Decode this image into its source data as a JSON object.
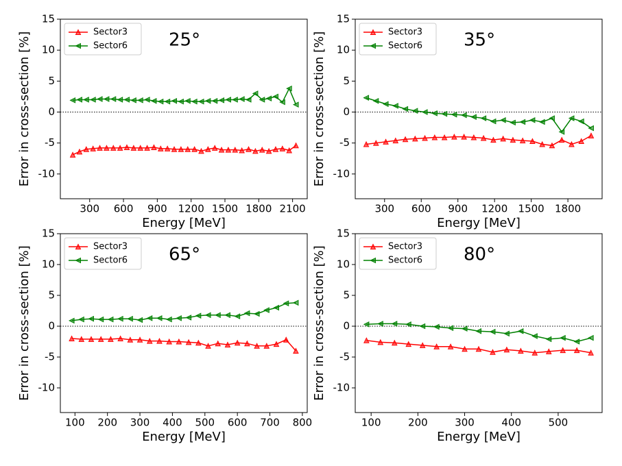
{
  "chart_data": [
    {
      "type": "line",
      "annotation": "25°",
      "xlabel": "Energy [MeV]",
      "ylabel": "Error in cross-section [%]",
      "x": [
        150,
        210,
        270,
        330,
        390,
        450,
        510,
        570,
        630,
        690,
        750,
        810,
        870,
        930,
        990,
        1050,
        1110,
        1170,
        1230,
        1290,
        1350,
        1410,
        1470,
        1530,
        1590,
        1650,
        1710,
        1770,
        1830,
        1890,
        1950,
        2010,
        2070,
        2130
      ],
      "series": [
        {
          "name": "Sector3",
          "color": "#ff0000",
          "marker": "triangle-up",
          "values": [
            -6.9,
            -6.4,
            -6.0,
            -5.9,
            -5.8,
            -5.8,
            -5.8,
            -5.8,
            -5.7,
            -5.8,
            -5.8,
            -5.8,
            -5.7,
            -5.9,
            -5.9,
            -6.0,
            -6.0,
            -6.0,
            -6.0,
            -6.3,
            -6.0,
            -5.8,
            -6.1,
            -6.1,
            -6.1,
            -6.2,
            -6.0,
            -6.3,
            -6.1,
            -6.3,
            -6.0,
            -5.9,
            -6.2,
            -5.4
          ]
        },
        {
          "name": "Sector6",
          "color": "#008000",
          "marker": "triangle-left",
          "values": [
            1.9,
            2.0,
            2.0,
            2.0,
            2.1,
            2.1,
            2.1,
            2.0,
            2.0,
            1.9,
            1.9,
            2.0,
            1.8,
            1.7,
            1.7,
            1.8,
            1.7,
            1.8,
            1.7,
            1.7,
            1.8,
            1.8,
            1.9,
            2.0,
            2.0,
            2.1,
            2.0,
            3.0,
            2.0,
            2.2,
            2.5,
            1.6,
            3.8,
            1.2
          ]
        }
      ],
      "xlim": [
        40,
        2230
      ],
      "xticks": [
        300,
        600,
        900,
        1200,
        1500,
        1800,
        2100
      ],
      "ylim": [
        -14,
        15
      ],
      "yticks": [
        -10,
        -5,
        0,
        5,
        10,
        15
      ],
      "zero_line": true,
      "legend": "upper left"
    },
    {
      "type": "line",
      "annotation": "35°",
      "xlabel": "Energy [MeV]",
      "ylabel": "Error in cross-section [%]",
      "x": [
        150,
        230,
        310,
        390,
        470,
        550,
        630,
        710,
        790,
        870,
        950,
        1030,
        1110,
        1190,
        1270,
        1350,
        1430,
        1510,
        1590,
        1670,
        1750,
        1830,
        1910,
        1990
      ],
      "series": [
        {
          "name": "Sector3",
          "color": "#ff0000",
          "marker": "triangle-up",
          "values": [
            -5.2,
            -5.0,
            -4.8,
            -4.6,
            -4.4,
            -4.3,
            -4.2,
            -4.1,
            -4.1,
            -4.0,
            -4.0,
            -4.1,
            -4.2,
            -4.5,
            -4.3,
            -4.5,
            -4.6,
            -4.7,
            -5.2,
            -5.4,
            -4.5,
            -5.2,
            -4.7,
            -3.8
          ]
        },
        {
          "name": "Sector6",
          "color": "#008000",
          "marker": "triangle-left",
          "values": [
            2.3,
            1.8,
            1.3,
            1.0,
            0.5,
            0.2,
            0.0,
            -0.2,
            -0.3,
            -0.4,
            -0.5,
            -0.8,
            -1.0,
            -1.5,
            -1.3,
            -1.7,
            -1.6,
            -1.3,
            -1.6,
            -1.0,
            -3.2,
            -1.0,
            -1.5,
            -2.6
          ]
        }
      ],
      "xlim": [
        60,
        2080
      ],
      "xticks": [
        300,
        600,
        900,
        1200,
        1500,
        1800
      ],
      "ylim": [
        -14,
        15
      ],
      "yticks": [
        -10,
        -5,
        0,
        5,
        10,
        15
      ],
      "zero_line": true,
      "legend": "upper left"
    },
    {
      "type": "line",
      "annotation": "65°",
      "xlabel": "Energy [MeV]",
      "ylabel": "Error in cross-section [%]",
      "x": [
        90,
        120,
        150,
        180,
        210,
        240,
        270,
        300,
        330,
        360,
        390,
        420,
        450,
        480,
        510,
        540,
        570,
        600,
        630,
        660,
        690,
        720,
        750,
        780
      ],
      "series": [
        {
          "name": "Sector3",
          "color": "#ff0000",
          "marker": "triangle-up",
          "values": [
            -2.0,
            -2.1,
            -2.1,
            -2.1,
            -2.1,
            -2.0,
            -2.2,
            -2.2,
            -2.4,
            -2.4,
            -2.5,
            -2.5,
            -2.6,
            -2.7,
            -3.2,
            -2.8,
            -3.0,
            -2.7,
            -2.8,
            -3.2,
            -3.2,
            -2.9,
            -2.2,
            -4.0
          ]
        },
        {
          "name": "Sector6",
          "color": "#008000",
          "marker": "triangle-left",
          "values": [
            0.9,
            1.1,
            1.2,
            1.1,
            1.1,
            1.2,
            1.2,
            1.0,
            1.3,
            1.3,
            1.1,
            1.3,
            1.4,
            1.7,
            1.8,
            1.8,
            1.8,
            1.6,
            2.1,
            2.0,
            2.6,
            3.0,
            3.7,
            3.8
          ]
        }
      ],
      "xlim": [
        55,
        815
      ],
      "xticks": [
        100,
        200,
        300,
        400,
        500,
        600,
        700,
        800
      ],
      "ylim": [
        -14,
        15
      ],
      "yticks": [
        -10,
        -5,
        0,
        5,
        10,
        15
      ],
      "zero_line": true,
      "legend": "upper left"
    },
    {
      "type": "line",
      "annotation": "80°",
      "xlabel": "Energy [MeV]",
      "ylabel": "Error in cross-section [%]",
      "x": [
        90,
        120,
        150,
        180,
        210,
        240,
        270,
        300,
        330,
        360,
        390,
        420,
        450,
        480,
        510,
        540,
        570
      ],
      "series": [
        {
          "name": "Sector3",
          "color": "#ff0000",
          "marker": "triangle-up",
          "values": [
            -2.3,
            -2.6,
            -2.7,
            -2.9,
            -3.1,
            -3.3,
            -3.3,
            -3.7,
            -3.7,
            -4.2,
            -3.8,
            -4.0,
            -4.3,
            -4.1,
            -3.9,
            -3.9,
            -4.3
          ]
        },
        {
          "name": "Sector6",
          "color": "#008000",
          "marker": "triangle-left",
          "values": [
            0.3,
            0.4,
            0.4,
            0.3,
            0.0,
            -0.1,
            -0.3,
            -0.4,
            -0.8,
            -0.9,
            -1.2,
            -0.8,
            -1.6,
            -2.1,
            -1.9,
            -2.5,
            -1.9
          ]
        }
      ],
      "xlim": [
        66,
        594
      ],
      "xticks": [
        100,
        200,
        300,
        400,
        500
      ],
      "ylim": [
        -14,
        15
      ],
      "yticks": [
        -10,
        -5,
        0,
        5,
        10,
        15
      ],
      "zero_line": true,
      "legend": "upper left"
    }
  ]
}
